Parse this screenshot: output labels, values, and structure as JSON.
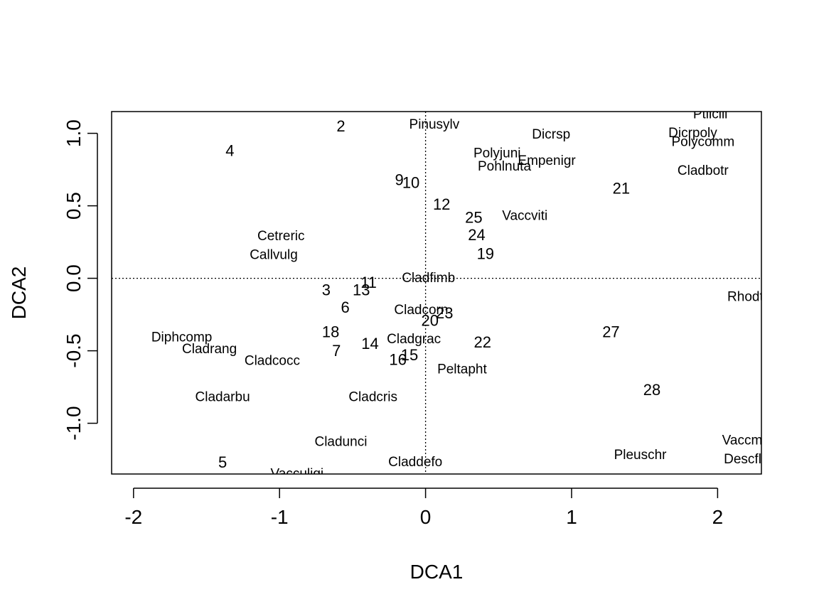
{
  "chart_data": {
    "type": "scatter",
    "title": "",
    "xlabel": "DCA1",
    "ylabel": "DCA2",
    "xlim": [
      -2.15,
      2.3
    ],
    "ylim": [
      -1.35,
      1.15
    ],
    "xticks": [
      -2,
      -1,
      0,
      1,
      2
    ],
    "yticks": [
      -1.0,
      -0.5,
      0.0,
      0.5,
      1.0
    ],
    "xtick_labels": [
      "-2",
      "-1",
      "0",
      "1",
      "2"
    ],
    "ytick_labels": [
      "-1.0",
      "-0.5",
      "0.0",
      "0.5",
      "1.0"
    ],
    "reference_lines": {
      "x": 0,
      "y": 0,
      "style": "dotted"
    },
    "grid": false,
    "sites": [
      {
        "label": "2",
        "x": -0.58,
        "y": 1.05
      },
      {
        "label": "4",
        "x": -1.34,
        "y": 0.88
      },
      {
        "label": "9",
        "x": -0.18,
        "y": 0.68
      },
      {
        "label": "10",
        "x": -0.1,
        "y": 0.66
      },
      {
        "label": "12",
        "x": 0.11,
        "y": 0.51
      },
      {
        "label": "25",
        "x": 0.33,
        "y": 0.42
      },
      {
        "label": "24",
        "x": 0.35,
        "y": 0.3
      },
      {
        "label": "19",
        "x": 0.41,
        "y": 0.17
      },
      {
        "label": "21",
        "x": 1.34,
        "y": 0.62
      },
      {
        "label": "11",
        "x": -0.39,
        "y": -0.03
      },
      {
        "label": "3",
        "x": -0.68,
        "y": -0.08
      },
      {
        "label": "13",
        "x": -0.44,
        "y": -0.08
      },
      {
        "label": "6",
        "x": -0.55,
        "y": -0.2
      },
      {
        "label": "23",
        "x": 0.13,
        "y": -0.24
      },
      {
        "label": "20",
        "x": 0.03,
        "y": -0.29
      },
      {
        "label": "18",
        "x": -0.65,
        "y": -0.37
      },
      {
        "label": "27",
        "x": 1.27,
        "y": -0.37
      },
      {
        "label": "14",
        "x": -0.38,
        "y": -0.45
      },
      {
        "label": "22",
        "x": 0.39,
        "y": -0.44
      },
      {
        "label": "7",
        "x": -0.61,
        "y": -0.5
      },
      {
        "label": "15",
        "x": -0.11,
        "y": -0.53
      },
      {
        "label": "16",
        "x": -0.19,
        "y": -0.56
      },
      {
        "label": "28",
        "x": 1.55,
        "y": -0.77
      },
      {
        "label": "5",
        "x": -1.39,
        "y": -1.27
      }
    ],
    "species": [
      {
        "label": "Pinusylv",
        "x": 0.06,
        "y": 1.06
      },
      {
        "label": "Dicrsp",
        "x": 0.86,
        "y": 0.99
      },
      {
        "label": "Dicrpoly",
        "x": 1.83,
        "y": 1.0
      },
      {
        "label": "Ptilcili",
        "x": 1.95,
        "y": 1.13
      },
      {
        "label": "Polycomm",
        "x": 1.9,
        "y": 0.94
      },
      {
        "label": "Polyjuni",
        "x": 0.49,
        "y": 0.86
      },
      {
        "label": "Empenigr",
        "x": 0.83,
        "y": 0.81
      },
      {
        "label": "Pohlnuta",
        "x": 0.54,
        "y": 0.77
      },
      {
        "label": "Cladbotr",
        "x": 1.9,
        "y": 0.74
      },
      {
        "label": "Vaccviti",
        "x": 0.68,
        "y": 0.43
      },
      {
        "label": "Cetreric",
        "x": -0.99,
        "y": 0.29
      },
      {
        "label": "Callvulg",
        "x": -1.04,
        "y": 0.16
      },
      {
        "label": "Cladfimb",
        "x": 0.02,
        "y": 0.0
      },
      {
        "label": "Rhodtome",
        "x": 2.28,
        "y": -0.13
      },
      {
        "label": "Cladcorn",
        "x": -0.03,
        "y": -0.22
      },
      {
        "label": "Diphcomp",
        "x": -1.67,
        "y": -0.41
      },
      {
        "label": "Cladgrac",
        "x": -0.08,
        "y": -0.42
      },
      {
        "label": "Cladrang",
        "x": -1.48,
        "y": -0.49
      },
      {
        "label": "Cladcocc",
        "x": -1.05,
        "y": -0.57
      },
      {
        "label": "Peltapht",
        "x": 0.25,
        "y": -0.63
      },
      {
        "label": "Cladarbu",
        "x": -1.39,
        "y": -0.82
      },
      {
        "label": "Cladcris",
        "x": -0.36,
        "y": -0.82
      },
      {
        "label": "Cladunci",
        "x": -0.58,
        "y": -1.13
      },
      {
        "label": "Claddefo",
        "x": -0.07,
        "y": -1.27
      },
      {
        "label": "Pleuschr",
        "x": 1.47,
        "y": -1.22
      },
      {
        "label": "Vaccmyrt",
        "x": 2.22,
        "y": -1.12
      },
      {
        "label": "Descflex",
        "x": 2.22,
        "y": -1.25
      },
      {
        "label": "Vacculigi",
        "x": -0.88,
        "y": -1.35
      }
    ]
  }
}
